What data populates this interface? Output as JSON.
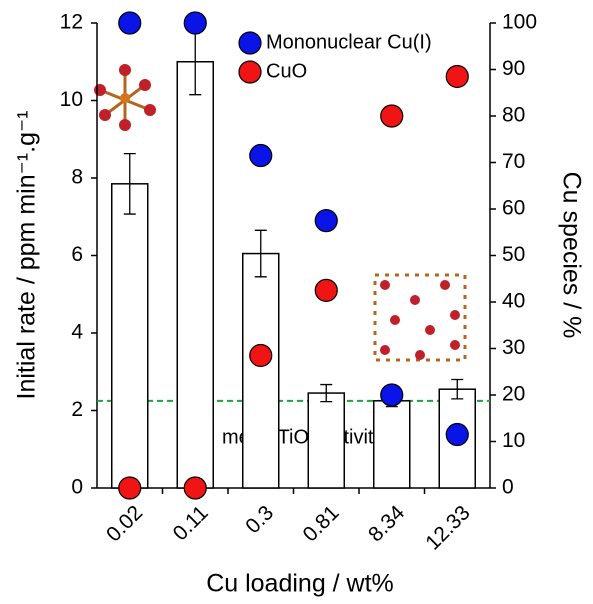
{
  "chart_data": {
    "type": "bar",
    "x_label": "Cu loading / wt%",
    "y_label": "Initial rate / ppm min⁻¹.g⁻¹",
    "y2_label": "Cu species / %",
    "categories": [
      "0.02",
      "0.11",
      "0.3",
      "0.81",
      "8.34",
      "12.33"
    ],
    "series": [
      {
        "type": "bar",
        "axis": "y",
        "color": "#ffffff",
        "values": [
          7.85,
          11.0,
          6.05,
          2.45,
          2.25,
          2.55
        ],
        "errors": [
          0.78,
          0.85,
          0.6,
          0.22,
          0.15,
          0.25
        ]
      },
      {
        "type": "scatter",
        "axis": "y2",
        "name": "Mononuclear  Cu(I)",
        "color": "#0a14e6",
        "values": [
          100,
          100,
          71.5,
          57.5,
          20,
          11.5
        ]
      },
      {
        "type": "scatter",
        "axis": "y2",
        "name": "CuO",
        "color": "#f01414",
        "values": [
          0,
          0,
          28.5,
          42.5,
          80,
          88.5
        ]
      }
    ],
    "reference_line": {
      "value": 2.25,
      "label": "meso-TiO₂ activity",
      "color": "#1aa83a"
    },
    "ylim": [
      0,
      12
    ],
    "yticks": [
      0,
      2,
      4,
      6,
      8,
      10,
      12
    ],
    "y2lim": [
      0,
      100
    ],
    "y2ticks": [
      0,
      10,
      20,
      30,
      40,
      50,
      60,
      70,
      80,
      90,
      100
    ]
  }
}
